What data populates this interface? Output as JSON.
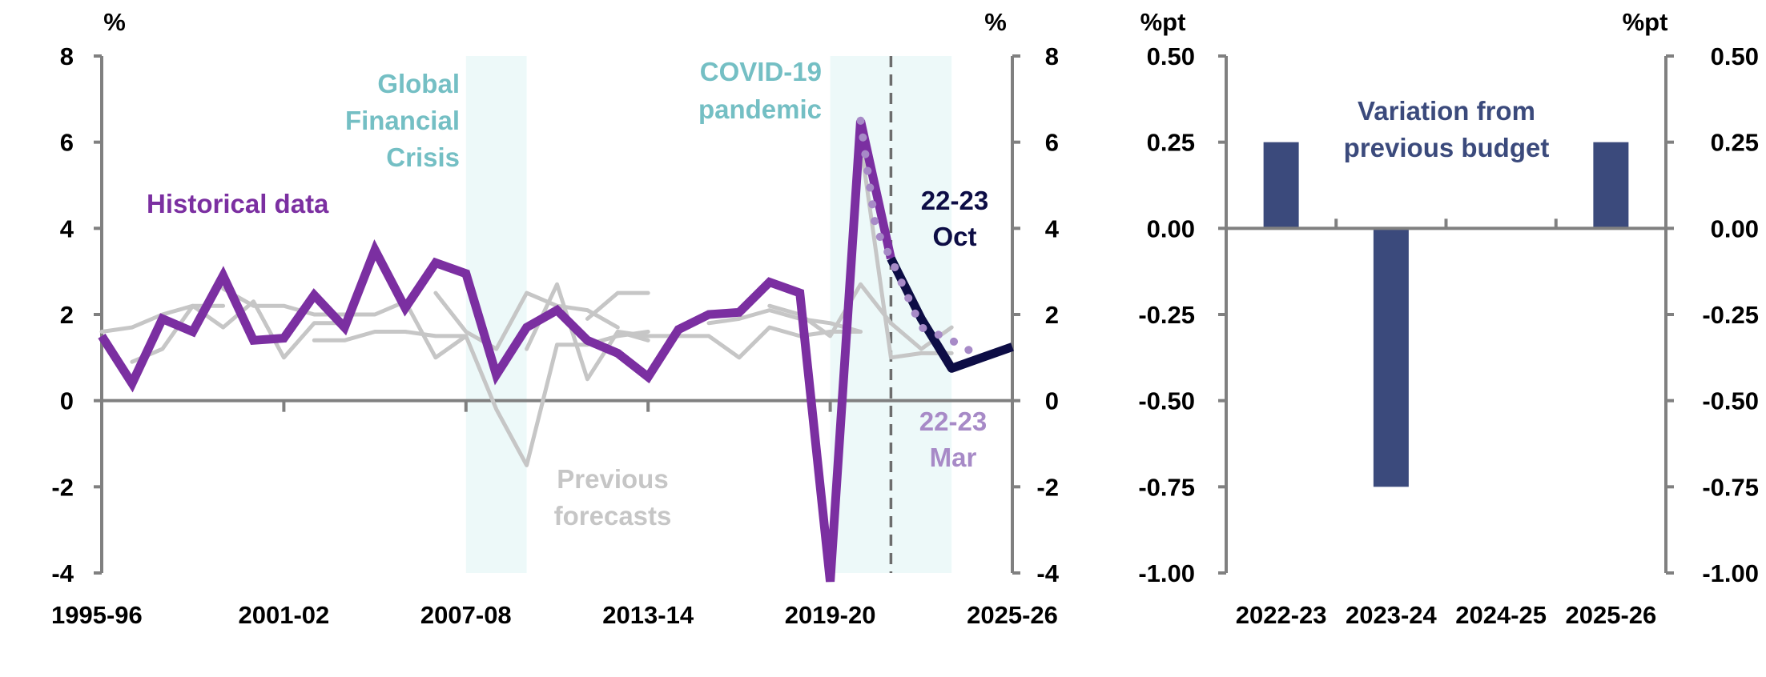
{
  "colors": {
    "historical": "#7b2fa1",
    "previous": "#c6c6c6",
    "oct": "#0d0d45",
    "mar": "#a78ac7",
    "shade": "#edf9f9",
    "shade_label": "#74bfc4",
    "bar": "#3b4a7c",
    "axis": "#808080",
    "dashed": "#6d6d6d"
  },
  "chart_data": [
    {
      "type": "line",
      "unit_left": "%",
      "unit_right": "%",
      "ylim": [
        -4,
        8
      ],
      "yticks": [
        -4,
        -2,
        0,
        2,
        4,
        6,
        8
      ],
      "x_tick_labels": [
        "1995-96",
        "2001-02",
        "2007-08",
        "2013-14",
        "2019-20",
        "2025-26"
      ],
      "x_range": [
        "1995-96",
        "2025-26"
      ],
      "shaded_periods": [
        {
          "label_lines": [
            "Global",
            "Financial",
            "Crisis"
          ],
          "start": "2007-08",
          "end": "2009-10"
        },
        {
          "label_lines": [
            "COVID-19",
            "pandemic"
          ],
          "start": "2019-20",
          "end": "2023-24"
        }
      ],
      "dashed_vertical_line": "2021-22",
      "annotations": {
        "historical": "Historical data",
        "previous": [
          "Previous",
          "forecasts"
        ],
        "oct": [
          "22-23",
          "Oct"
        ],
        "mar": [
          "22-23",
          "Mar"
        ]
      },
      "series": [
        {
          "key": "historical",
          "x": [
            "1995-96",
            "1996-97",
            "1997-98",
            "1998-99",
            "1999-00",
            "2000-01",
            "2001-02",
            "2002-03",
            "2003-04",
            "2004-05",
            "2005-06",
            "2006-07",
            "2007-08",
            "2008-09",
            "2009-10",
            "2010-11",
            "2011-12",
            "2012-13",
            "2013-14",
            "2014-15",
            "2015-16",
            "2016-17",
            "2017-18",
            "2018-19",
            "2019-20",
            "2020-21",
            "2021-22"
          ],
          "y": [
            1.5,
            0.4,
            1.9,
            1.6,
            2.9,
            1.4,
            1.45,
            2.45,
            1.7,
            3.5,
            2.15,
            3.2,
            2.95,
            0.6,
            1.7,
            2.1,
            1.4,
            1.1,
            0.55,
            1.65,
            2.0,
            2.05,
            2.75,
            2.5,
            -4.2,
            6.5,
            3.3
          ]
        },
        {
          "key": "oct",
          "x": [
            "2021-22",
            "2022-23",
            "2023-24",
            "2024-25",
            "2025-26"
          ],
          "y": [
            3.3,
            1.9,
            0.75,
            1.0,
            1.25
          ]
        },
        {
          "key": "mar",
          "x": [
            "2020-21",
            "2020-21.5",
            "2021-22",
            "2022-23",
            "2023-24",
            "2024-25"
          ],
          "y": [
            6.5,
            4.0,
            3.3,
            1.7,
            1.4,
            1.0
          ]
        },
        {
          "key": "previous",
          "lines": [
            {
              "x": [
                "1995-96",
                "1996-97",
                "1997-98",
                "1998-99",
                "1999-00"
              ],
              "y": [
                1.6,
                1.7,
                2.0,
                2.2,
                2.2
              ]
            },
            {
              "x": [
                "1996-97",
                "1997-98",
                "1998-99",
                "1999-00",
                "2000-01",
                "2001-02",
                "2002-03",
                "2003-04"
              ],
              "y": [
                0.9,
                1.2,
                2.2,
                1.7,
                2.3,
                1.0,
                1.8,
                1.8
              ]
            },
            {
              "x": [
                "1999-00",
                "2000-01",
                "2001-02",
                "2002-03",
                "2003-04",
                "2004-05",
                "2005-06",
                "2006-07",
                "2007-08"
              ],
              "y": [
                2.6,
                2.2,
                2.2,
                2.0,
                2.0,
                2.0,
                2.3,
                1.0,
                1.5
              ]
            },
            {
              "x": [
                "2002-03",
                "2003-04",
                "2004-05",
                "2005-06",
                "2006-07",
                "2007-08",
                "2008-09",
                "2009-10",
                "2010-11",
                "2011-12",
                "2012-13",
                "2013-14"
              ],
              "y": [
                1.4,
                1.4,
                1.6,
                1.6,
                1.5,
                1.5,
                -0.2,
                -1.5,
                1.3,
                1.3,
                1.5,
                1.6
              ]
            },
            {
              "x": [
                "2006-07",
                "2007-08",
                "2008-09",
                "2009-10",
                "2010-11",
                "2011-12",
                "2012-13"
              ],
              "y": [
                2.5,
                1.6,
                1.2,
                2.5,
                2.2,
                2.1,
                1.7
              ]
            },
            {
              "x": [
                "2009-10",
                "2010-11",
                "2011-12",
                "2012-13",
                "2013-14"
              ],
              "y": [
                1.2,
                2.7,
                0.5,
                1.6,
                1.4
              ]
            },
            {
              "x": [
                "2011-12",
                "2012-13",
                "2013-14"
              ],
              "y": [
                1.9,
                2.5,
                2.5
              ]
            },
            {
              "x": [
                "2012-13",
                "2013-14",
                "2014-15",
                "2015-16",
                "2016-17",
                "2017-18",
                "2018-19",
                "2019-20",
                "2020-21"
              ],
              "y": [
                1.6,
                1.5,
                1.5,
                1.5,
                1.0,
                1.7,
                1.5,
                1.6,
                1.6
              ]
            },
            {
              "x": [
                "2015-16",
                "2016-17",
                "2017-18",
                "2018-19",
                "2019-20",
                "2020-21"
              ],
              "y": [
                1.8,
                1.9,
                2.1,
                1.9,
                1.8,
                1.6
              ]
            },
            {
              "x": [
                "2017-18",
                "2018-19",
                "2019-20",
                "2020-21",
                "2021-22",
                "2022-23",
                "2023-24"
              ],
              "y": [
                2.2,
                2.0,
                1.5,
                2.7,
                1.8,
                1.2,
                1.7
              ]
            },
            {
              "x": [
                "2020-21",
                "2021-22",
                "2022-23",
                "2023-24"
              ],
              "y": [
                6.0,
                1.0,
                1.1,
                1.1
              ]
            }
          ]
        }
      ]
    },
    {
      "type": "bar",
      "unit_left": "%pt",
      "unit_right": "%pt",
      "categories": [
        "2022-23",
        "2023-24",
        "2024-25",
        "2025-26"
      ],
      "values": [
        0.25,
        -0.75,
        0.0,
        0.25
      ],
      "ylim": [
        -1.0,
        0.5
      ],
      "yticks": [
        "0.50",
        "0.25",
        "0.00",
        "-0.25",
        "-0.50",
        "-0.75",
        "-1.00"
      ],
      "annotation": [
        "Variation from",
        "previous budget"
      ]
    }
  ]
}
